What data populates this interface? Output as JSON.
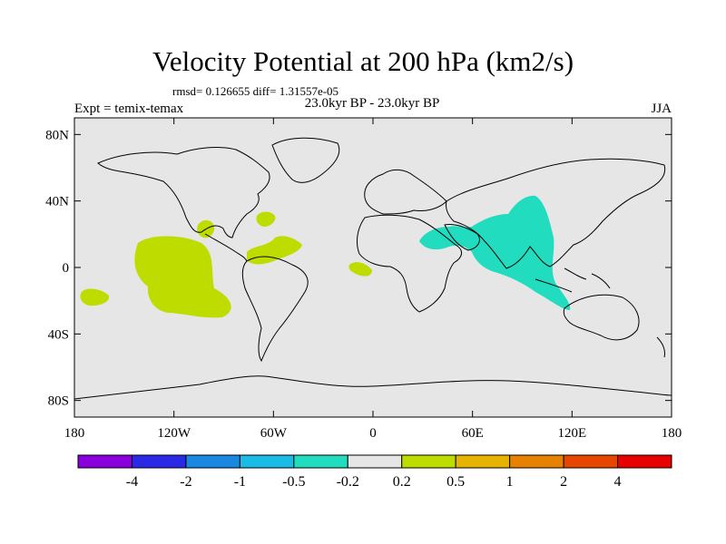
{
  "title": "Velocity Potential at 200 hPa (km2/s)",
  "stats": "rmsd= 0.126655 diff= 1.31557e-05",
  "expt": "Expt = temix-temax",
  "period": "23.0kyr BP - 23.0kyr BP",
  "season": "JJA",
  "map": {
    "lat_ticks": [
      {
        "value": 80,
        "label": "80N"
      },
      {
        "value": 40,
        "label": "40N"
      },
      {
        "value": 0,
        "label": "0"
      },
      {
        "value": -40,
        "label": "40S"
      },
      {
        "value": -80,
        "label": "80S"
      }
    ],
    "lon_ticks": [
      {
        "value": -180,
        "label": "180"
      },
      {
        "value": -120,
        "label": "120W"
      },
      {
        "value": -60,
        "label": "60W"
      },
      {
        "value": 0,
        "label": "0"
      },
      {
        "value": 60,
        "label": "60E"
      },
      {
        "value": 120,
        "label": "120E"
      },
      {
        "value": 180,
        "label": "180"
      }
    ],
    "background_color": "#e6e6e6",
    "positive_fill": "#bfdc00",
    "negative_fill": "#22dcc0"
  },
  "colorbar": {
    "colors": [
      "#8a00dc",
      "#2a2ae6",
      "#1a88e0",
      "#1abce6",
      "#22dcc0",
      "#e6e6e6",
      "#bfdc00",
      "#e6b400",
      "#e68200",
      "#e64600",
      "#e60000"
    ],
    "labels": [
      "-4",
      "-2",
      "-1",
      "-0.5",
      "-0.2",
      "0.2",
      "0.5",
      "1",
      "2",
      "4"
    ]
  }
}
